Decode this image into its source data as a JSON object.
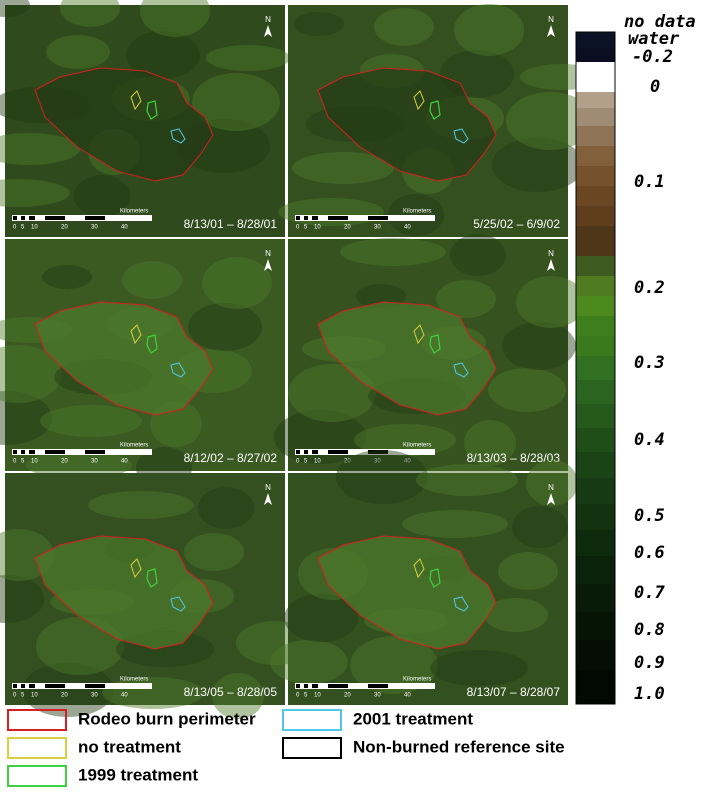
{
  "panels": [
    {
      "date": "8/13/01 – 8/28/01"
    },
    {
      "date": "5/25/02 – 6/9/02"
    },
    {
      "date": "8/12/02 – 8/27/02"
    },
    {
      "date": "8/13/03 – 8/28/03"
    },
    {
      "date": "8/13/05 – 8/28/05"
    },
    {
      "date": "8/13/07 – 8/28/07"
    }
  ],
  "scale_bar": {
    "ticks": [
      "0",
      "5",
      "10",
      "20",
      "30",
      "40"
    ],
    "unit": "Kilometers"
  },
  "north": "N",
  "colorbar": {
    "labels": [
      "no data",
      "water",
      "-0.2",
      "0",
      "0.1",
      "0.2",
      "0.3",
      "0.4",
      "0.5",
      "0.6",
      "0.7",
      "0.8",
      "0.9",
      "1.0"
    ]
  },
  "legend": [
    "Rodeo burn perimeter",
    "no treatment",
    "1999 treatment",
    "2001 treatment",
    "Non-burned reference site"
  ]
}
